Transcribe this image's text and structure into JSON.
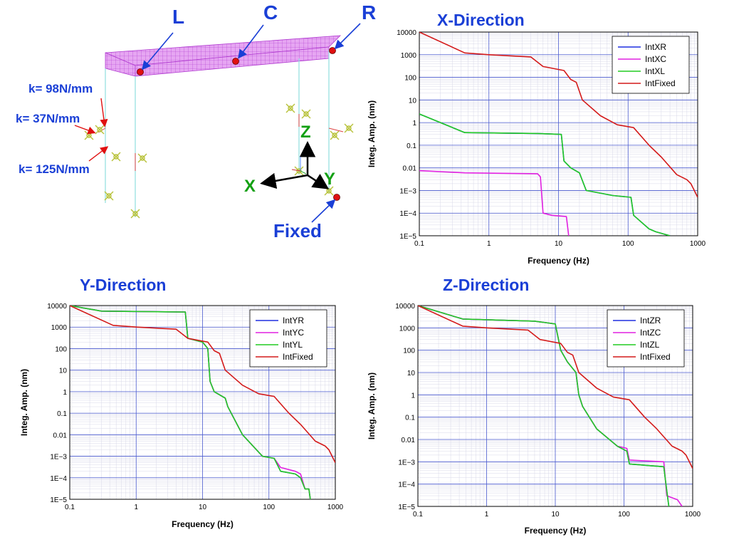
{
  "diagram": {
    "labels": {
      "L": "L",
      "C": "C",
      "R": "R",
      "fixed": "Fixed"
    },
    "springs": [
      "k= 98N/mm",
      "k= 37N/mm",
      "k= 125N/mm"
    ],
    "axes": {
      "x": "X",
      "y": "Y",
      "z": "Z"
    },
    "colors": {
      "beam": "#cc33ee",
      "marker": "#e01010",
      "arrow": "#1a3fd6",
      "axis_text": "#12a012"
    }
  },
  "chart_data": [
    {
      "type": "line",
      "title": "X-Direction",
      "xlabel": "Frequency (Hz)",
      "ylabel": "Integ. Amp. (nm)",
      "xscale": "log",
      "yscale": "log",
      "xlim": [
        0.1,
        1000
      ],
      "ylim": [
        1e-05,
        10000
      ],
      "xticks": [
        "0.1",
        "1",
        "10",
        "100",
        "1000"
      ],
      "yticks": [
        "10000",
        "1000",
        "100",
        "10",
        "1",
        "0.1",
        "0.01",
        "1E−3",
        "1E−4",
        "1E−5"
      ],
      "grid": true,
      "legend_position": "top-right",
      "series": [
        {
          "name": "IntXR",
          "color": "#1f2fe0",
          "points": [
            [
              0.1,
              2.4
            ],
            [
              0.45,
              0.36
            ],
            [
              5,
              0.33
            ],
            [
              11,
              0.3
            ],
            [
              12,
              0.02
            ],
            [
              15,
              0.01
            ],
            [
              20,
              0.006
            ],
            [
              25,
              0.001
            ],
            [
              60,
              0.0006
            ],
            [
              110,
              0.0005
            ],
            [
              120,
              8e-05
            ],
            [
              200,
              2e-05
            ],
            [
              250,
              1.5e-05
            ],
            [
              400,
              1e-05
            ]
          ]
        },
        {
          "name": "IntXC",
          "color": "#e020e0",
          "points": [
            [
              0.1,
              0.0075
            ],
            [
              0.45,
              0.006
            ],
            [
              5,
              0.0055
            ],
            [
              5.5,
              0.004
            ],
            [
              6,
              0.0001
            ],
            [
              8,
              8e-05
            ],
            [
              13,
              7e-05
            ],
            [
              14,
              1e-05
            ]
          ]
        },
        {
          "name": "IntXL",
          "color": "#22cc22",
          "points": [
            [
              0.1,
              2.4
            ],
            [
              0.45,
              0.36
            ],
            [
              5,
              0.33
            ],
            [
              11,
              0.3
            ],
            [
              12,
              0.02
            ],
            [
              15,
              0.01
            ],
            [
              20,
              0.006
            ],
            [
              25,
              0.001
            ],
            [
              60,
              0.0006
            ],
            [
              110,
              0.0005
            ],
            [
              120,
              8e-05
            ],
            [
              200,
              2e-05
            ],
            [
              250,
              1.5e-05
            ],
            [
              400,
              1e-05
            ]
          ]
        },
        {
          "name": "IntFixed",
          "color": "#d41a1a",
          "points": [
            [
              0.1,
              10000
            ],
            [
              0.45,
              1200
            ],
            [
              1,
              1000
            ],
            [
              4,
              800
            ],
            [
              6,
              300
            ],
            [
              12,
              200
            ],
            [
              15,
              80
            ],
            [
              18,
              60
            ],
            [
              22,
              10
            ],
            [
              40,
              2
            ],
            [
              70,
              0.8
            ],
            [
              120,
              0.6
            ],
            [
              200,
              0.1
            ],
            [
              300,
              0.03
            ],
            [
              500,
              0.005
            ],
            [
              700,
              0.003
            ],
            [
              800,
              0.002
            ],
            [
              1000,
              0.0005
            ]
          ]
        }
      ]
    },
    {
      "type": "line",
      "title": "Y-Direction",
      "xlabel": "Frequency (Hz)",
      "ylabel": "Integ. Amp. (nm)",
      "xscale": "log",
      "yscale": "log",
      "xlim": [
        0.1,
        1000
      ],
      "ylim": [
        1e-05,
        10000
      ],
      "xticks": [
        "0.1",
        "1",
        "10",
        "100",
        "1000"
      ],
      "yticks": [
        "10000",
        "1000",
        "100",
        "10",
        "1",
        "0.1",
        "0.01",
        "1E−3",
        "1E−4",
        "1E−5"
      ],
      "grid": true,
      "legend_position": "top-right",
      "series": [
        {
          "name": "IntYR",
          "color": "#1f2fe0",
          "points": [
            [
              0.1,
              10000
            ],
            [
              0.3,
              5500
            ],
            [
              5.5,
              5000
            ],
            [
              6,
              300
            ],
            [
              10,
              200
            ],
            [
              12,
              100
            ],
            [
              13,
              3
            ],
            [
              15,
              1
            ],
            [
              22,
              0.5
            ],
            [
              24,
              0.2
            ],
            [
              40,
              0.01
            ],
            [
              80,
              0.001
            ],
            [
              120,
              0.0008
            ],
            [
              150,
              0.0002
            ],
            [
              250,
              0.00015
            ],
            [
              300,
              0.0001
            ],
            [
              350,
              3e-05
            ],
            [
              400,
              3e-05
            ],
            [
              420,
              1e-05
            ]
          ]
        },
        {
          "name": "IntYC",
          "color": "#e020e0",
          "points": [
            [
              0.1,
              10000
            ],
            [
              0.3,
              5500
            ],
            [
              5.5,
              5000
            ],
            [
              6,
              300
            ],
            [
              10,
              200
            ],
            [
              12,
              100
            ],
            [
              13,
              3
            ],
            [
              15,
              1
            ],
            [
              22,
              0.5
            ],
            [
              24,
              0.2
            ],
            [
              40,
              0.01
            ],
            [
              80,
              0.001
            ],
            [
              120,
              0.0008
            ],
            [
              150,
              0.0003
            ],
            [
              250,
              0.0002
            ],
            [
              300,
              0.00015
            ],
            [
              350,
              3e-05
            ],
            [
              400,
              3e-05
            ],
            [
              420,
              1e-05
            ]
          ]
        },
        {
          "name": "IntYL",
          "color": "#22cc22",
          "points": [
            [
              0.1,
              10000
            ],
            [
              0.3,
              5500
            ],
            [
              5.5,
              5000
            ],
            [
              6,
              300
            ],
            [
              10,
              200
            ],
            [
              12,
              100
            ],
            [
              13,
              3
            ],
            [
              15,
              1
            ],
            [
              22,
              0.5
            ],
            [
              24,
              0.2
            ],
            [
              40,
              0.01
            ],
            [
              80,
              0.001
            ],
            [
              120,
              0.0008
            ],
            [
              150,
              0.0002
            ],
            [
              250,
              0.00015
            ],
            [
              300,
              0.0001
            ],
            [
              350,
              3e-05
            ],
            [
              400,
              3e-05
            ],
            [
              420,
              1e-05
            ]
          ]
        },
        {
          "name": "IntFixed",
          "color": "#d41a1a",
          "points": [
            [
              0.1,
              10000
            ],
            [
              0.45,
              1200
            ],
            [
              1,
              1000
            ],
            [
              4,
              800
            ],
            [
              6,
              300
            ],
            [
              12,
              200
            ],
            [
              15,
              80
            ],
            [
              18,
              60
            ],
            [
              22,
              10
            ],
            [
              40,
              2
            ],
            [
              70,
              0.8
            ],
            [
              120,
              0.6
            ],
            [
              200,
              0.1
            ],
            [
              300,
              0.03
            ],
            [
              500,
              0.005
            ],
            [
              700,
              0.003
            ],
            [
              800,
              0.002
            ],
            [
              1000,
              0.0005
            ]
          ]
        }
      ]
    },
    {
      "type": "line",
      "title": "Z-Direction",
      "xlabel": "Frequency (Hz)",
      "ylabel": "Integ. Amp. (nm)",
      "xscale": "log",
      "yscale": "log",
      "xlim": [
        0.1,
        1000
      ],
      "ylim": [
        1e-05,
        10000
      ],
      "xticks": [
        "0.1",
        "1",
        "10",
        "100",
        "1000"
      ],
      "yticks": [
        "10000",
        "1000",
        "100",
        "10",
        "1",
        "0.1",
        "0.01",
        "1E−3",
        "1E−4",
        "1E−5"
      ],
      "grid": true,
      "legend_position": "top-right",
      "series": [
        {
          "name": "IntZR",
          "color": "#1f2fe0",
          "points": [
            [
              0.1,
              10000
            ],
            [
              0.45,
              2500
            ],
            [
              5,
              2000
            ],
            [
              10,
              1500
            ],
            [
              12,
              100
            ],
            [
              15,
              30
            ],
            [
              20,
              10
            ],
            [
              22,
              1
            ],
            [
              25,
              0.3
            ],
            [
              40,
              0.03
            ],
            [
              80,
              0.005
            ],
            [
              110,
              0.003
            ],
            [
              120,
              0.0008
            ],
            [
              200,
              0.0007
            ],
            [
              380,
              0.0006
            ],
            [
              420,
              5e-05
            ],
            [
              450,
              1e-05
            ]
          ]
        },
        {
          "name": "IntZC",
          "color": "#e020e0",
          "points": [
            [
              0.1,
              10000
            ],
            [
              0.45,
              2500
            ],
            [
              5,
              2000
            ],
            [
              10,
              1500
            ],
            [
              12,
              100
            ],
            [
              15,
              30
            ],
            [
              20,
              10
            ],
            [
              22,
              1
            ],
            [
              25,
              0.3
            ],
            [
              40,
              0.03
            ],
            [
              80,
              0.005
            ],
            [
              110,
              0.004
            ],
            [
              120,
              0.0012
            ],
            [
              200,
              0.0011
            ],
            [
              380,
              0.001
            ],
            [
              420,
              3e-05
            ],
            [
              600,
              2e-05
            ],
            [
              700,
              1e-05
            ]
          ]
        },
        {
          "name": "IntZL",
          "color": "#22cc22",
          "points": [
            [
              0.1,
              10000
            ],
            [
              0.45,
              2500
            ],
            [
              5,
              2000
            ],
            [
              10,
              1500
            ],
            [
              12,
              100
            ],
            [
              15,
              30
            ],
            [
              20,
              10
            ],
            [
              22,
              1
            ],
            [
              25,
              0.3
            ],
            [
              40,
              0.03
            ],
            [
              80,
              0.005
            ],
            [
              110,
              0.003
            ],
            [
              120,
              0.0008
            ],
            [
              200,
              0.0007
            ],
            [
              380,
              0.0006
            ],
            [
              420,
              5e-05
            ],
            [
              450,
              1e-05
            ]
          ]
        },
        {
          "name": "IntFixed",
          "color": "#d41a1a",
          "points": [
            [
              0.1,
              10000
            ],
            [
              0.45,
              1200
            ],
            [
              1,
              1000
            ],
            [
              4,
              800
            ],
            [
              6,
              300
            ],
            [
              12,
              200
            ],
            [
              15,
              80
            ],
            [
              18,
              60
            ],
            [
              22,
              10
            ],
            [
              40,
              2
            ],
            [
              70,
              0.8
            ],
            [
              120,
              0.6
            ],
            [
              200,
              0.1
            ],
            [
              300,
              0.03
            ],
            [
              500,
              0.005
            ],
            [
              700,
              0.003
            ],
            [
              800,
              0.002
            ],
            [
              1000,
              0.0005
            ]
          ]
        }
      ]
    }
  ]
}
